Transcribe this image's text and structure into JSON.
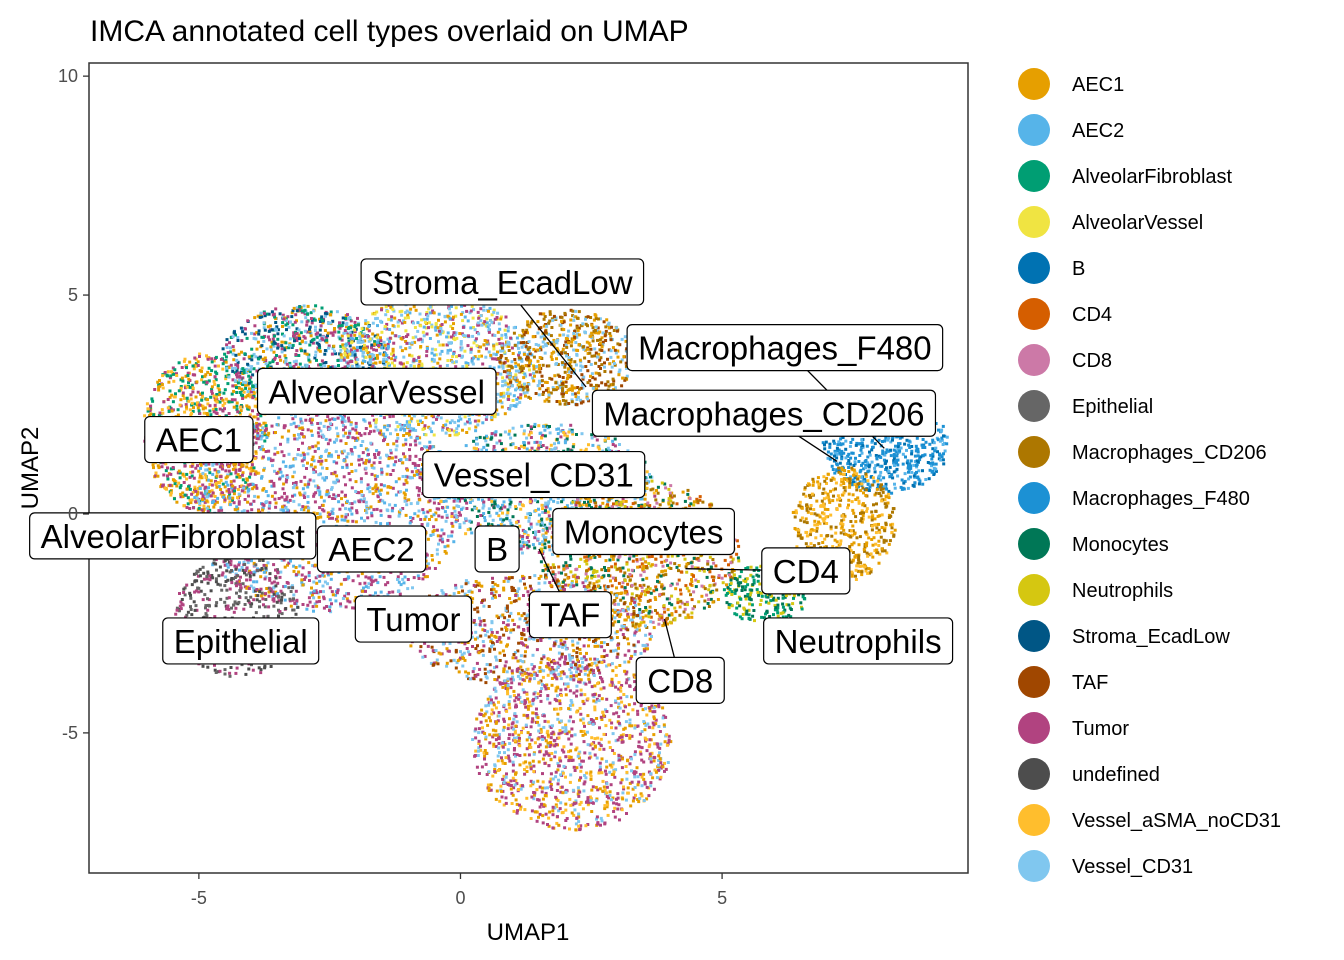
{
  "chart_data": {
    "type": "scatter",
    "title": "IMCA annotated cell types overlaid on UMAP",
    "xlabel": "UMAP1",
    "ylabel": "UMAP2",
    "xlim": [
      -7.1,
      9.7
    ],
    "ylim": [
      -8.2,
      10.3
    ],
    "x_ticks": [
      -5,
      0,
      5
    ],
    "y_ticks": [
      -5,
      0,
      5,
      10
    ],
    "grid": false,
    "legend_position": "right",
    "legend": [
      {
        "name": "AEC1",
        "color": "#E69F00"
      },
      {
        "name": "AEC2",
        "color": "#56B4E9"
      },
      {
        "name": "AlveolarFibroblast",
        "color": "#009E73"
      },
      {
        "name": "AlveolarVessel",
        "color": "#F0E442"
      },
      {
        "name": "B",
        "color": "#0072B2"
      },
      {
        "name": "CD4",
        "color": "#D55E00"
      },
      {
        "name": "CD8",
        "color": "#CC79A7"
      },
      {
        "name": "Epithelial",
        "color": "#666666"
      },
      {
        "name": "Macrophages_CD206",
        "color": "#AD7700"
      },
      {
        "name": "Macrophages_F480",
        "color": "#1C91D4"
      },
      {
        "name": "Monocytes",
        "color": "#007756"
      },
      {
        "name": "Neutrophils",
        "color": "#D5C711"
      },
      {
        "name": "Stroma_EcadLow",
        "color": "#005685"
      },
      {
        "name": "TAF",
        "color": "#A04700"
      },
      {
        "name": "Tumor",
        "color": "#B14380"
      },
      {
        "name": "undefined",
        "color": "#4D4D4D"
      },
      {
        "name": "Vessel_aSMA_noCD31",
        "color": "#FFBE2D"
      },
      {
        "name": "Vessel_CD31",
        "color": "#80C7EF"
      }
    ],
    "cluster_labels": [
      {
        "text": "AEC1",
        "x": -5.0,
        "y": 1.7,
        "pt_x": -5.0,
        "pt_y": 1.7
      },
      {
        "text": "AEC2",
        "x": -1.7,
        "y": -0.8,
        "pt_x": -1.7,
        "pt_y": -0.8
      },
      {
        "text": "AlveolarFibroblast",
        "x": -5.5,
        "y": -0.5,
        "pt_x": -5.5,
        "pt_y": -0.5
      },
      {
        "text": "AlveolarVessel",
        "x": -1.6,
        "y": 2.8,
        "pt_x": -1.6,
        "pt_y": 2.8
      },
      {
        "text": "B",
        "x": 0.7,
        "y": -0.8,
        "pt_x": 0.7,
        "pt_y": -0.8
      },
      {
        "text": "CD4",
        "x": 6.6,
        "y": -1.3,
        "pt_x": 4.3,
        "pt_y": -1.25
      },
      {
        "text": "CD8",
        "x": 4.2,
        "y": -3.8,
        "pt_x": 3.9,
        "pt_y": -2.4
      },
      {
        "text": "Epithelial",
        "x": -4.2,
        "y": -2.9,
        "pt_x": -4.2,
        "pt_y": -2.9
      },
      {
        "text": "Macrophages_CD206",
        "x": 5.8,
        "y": 2.3,
        "pt_x": 7.2,
        "pt_y": 1.2
      },
      {
        "text": "Macrophages_F480",
        "x": 6.2,
        "y": 3.8,
        "pt_x": 8.1,
        "pt_y": 1.5
      },
      {
        "text": "Monocytes",
        "x": 3.5,
        "y": -0.4,
        "pt_x": 3.5,
        "pt_y": -0.4
      },
      {
        "text": "Neutrophils",
        "x": 7.6,
        "y": -2.9,
        "pt_x": 7.6,
        "pt_y": -2.9
      },
      {
        "text": "Stroma_EcadLow",
        "x": 0.8,
        "y": 5.3,
        "pt_x": 2.4,
        "pt_y": 2.9
      },
      {
        "text": "TAF",
        "x": 2.1,
        "y": -2.3,
        "pt_x": 1.5,
        "pt_y": -0.8
      },
      {
        "text": "Tumor",
        "x": -0.9,
        "y": -2.4,
        "pt_x": -0.9,
        "pt_y": -2.4
      },
      {
        "text": "Vessel_CD31",
        "x": 1.4,
        "y": 0.9,
        "pt_x": 1.4,
        "pt_y": 0.9
      }
    ],
    "point_regions": [
      {
        "cx": -4.9,
        "cy": 1.9,
        "rx": 1.2,
        "ry": 1.8,
        "colors": [
          "AEC1",
          "Vessel_aSMA_noCD31",
          "AlveolarFibroblast",
          "Tumor"
        ],
        "n": 900
      },
      {
        "cx": -3.0,
        "cy": 3.6,
        "rx": 1.6,
        "ry": 1.2,
        "colors": [
          "AEC1",
          "Stroma_EcadLow",
          "AlveolarFibroblast",
          "Tumor",
          "Vessel_CD31"
        ],
        "n": 900
      },
      {
        "cx": -2.6,
        "cy": 0.2,
        "rx": 2.6,
        "ry": 2.4,
        "colors": [
          "Tumor",
          "Tumor",
          "AEC2",
          "AEC1",
          "Vessel_CD31"
        ],
        "n": 1800
      },
      {
        "cx": -4.3,
        "cy": -2.3,
        "rx": 1.2,
        "ry": 1.4,
        "colors": [
          "Epithelial",
          "Tumor",
          "undefined"
        ],
        "n": 500
      },
      {
        "cx": -0.5,
        "cy": 3.4,
        "rx": 1.9,
        "ry": 1.6,
        "colors": [
          "Vessel_CD31",
          "AlveolarVessel",
          "AEC1",
          "Tumor",
          "AEC2"
        ],
        "n": 1100
      },
      {
        "cx": 2.0,
        "cy": 3.6,
        "rx": 1.3,
        "ry": 1.1,
        "colors": [
          "TAF",
          "Macrophages_CD206",
          "AEC1",
          "Vessel_CD31"
        ],
        "n": 600
      },
      {
        "cx": 1.6,
        "cy": 0.6,
        "rx": 2.1,
        "ry": 1.5,
        "colors": [
          "Vessel_CD31",
          "AEC2",
          "Vessel_aSMA_noCD31",
          "Monocytes",
          "Tumor"
        ],
        "n": 1100
      },
      {
        "cx": 3.4,
        "cy": -0.9,
        "rx": 1.9,
        "ry": 1.7,
        "colors": [
          "CD4",
          "CD8",
          "Monocytes",
          "Macrophages_CD206",
          "Neutrophils",
          "AEC1"
        ],
        "n": 1100
      },
      {
        "cx": 1.3,
        "cy": -2.6,
        "rx": 2.4,
        "ry": 1.3,
        "colors": [
          "Tumor",
          "AEC1",
          "Vessel_CD31",
          "TAF"
        ],
        "n": 900
      },
      {
        "cx": 2.1,
        "cy": -5.2,
        "rx": 1.9,
        "ry": 2.0,
        "colors": [
          "Tumor",
          "Tumor",
          "Vessel_aSMA_noCD31",
          "AEC1",
          "Vessel_CD31"
        ],
        "n": 1200
      },
      {
        "cx": 8.1,
        "cy": 1.6,
        "rx": 1.2,
        "ry": 1.1,
        "colors": [
          "Macrophages_F480",
          "Macrophages_F480",
          "B",
          "AEC2"
        ],
        "n": 600
      },
      {
        "cx": 7.3,
        "cy": -0.2,
        "rx": 1.0,
        "ry": 1.3,
        "colors": [
          "Macrophages_CD206",
          "AEC1",
          "Vessel_aSMA_noCD31"
        ],
        "n": 500
      },
      {
        "cx": 5.8,
        "cy": -1.8,
        "rx": 0.8,
        "ry": 0.7,
        "colors": [
          "AlveolarFibroblast",
          "Monocytes",
          "Neutrophils"
        ],
        "n": 250
      }
    ]
  }
}
